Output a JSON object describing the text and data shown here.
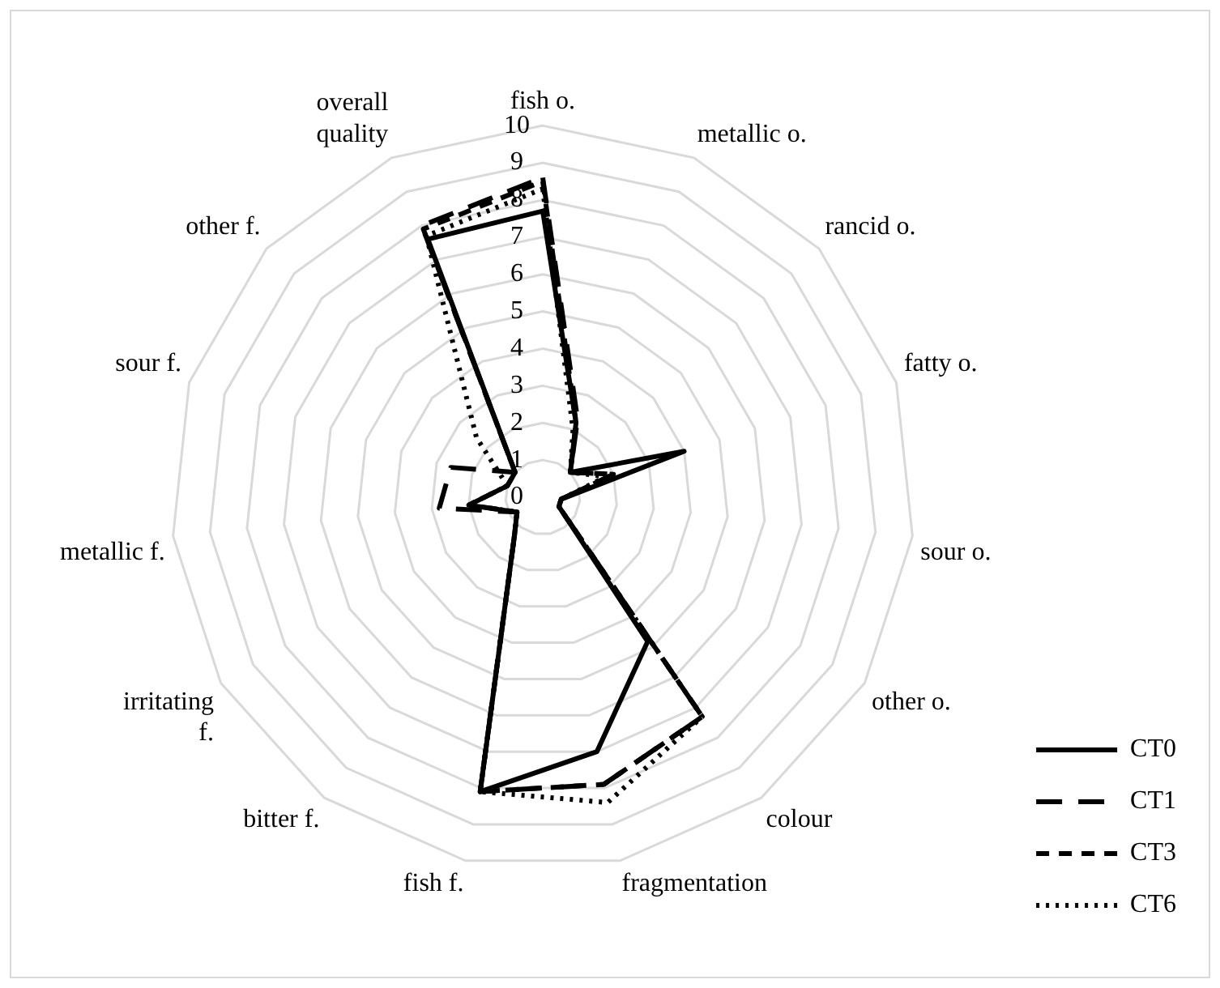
{
  "chart_data": {
    "type": "radar",
    "categories": [
      "fish o.",
      "metallic o.",
      "rancid o.",
      "fatty o.",
      "sour o.",
      "other o.",
      "colour",
      "fragmentation",
      "fish f.",
      "bitter f.",
      "irritating f.",
      "metallic f.",
      "sour f.",
      "other f.",
      "overall quality"
    ],
    "series": [
      {
        "name": "CT0",
        "color": "#000000",
        "line_style": "solid",
        "values": [
          7.7,
          2.2,
          1.0,
          4.0,
          0.5,
          0.5,
          4.8,
          7.0,
          8.1,
          1.3,
          0.8,
          2.0,
          1.0,
          1.0,
          7.6
        ]
      },
      {
        "name": "CT1",
        "color": "#000000",
        "line_style": "longdash",
        "values": [
          8.6,
          2.3,
          1.0,
          2.0,
          0.5,
          0.5,
          7.3,
          7.9,
          8.1,
          1.3,
          0.8,
          2.8,
          2.6,
          1.0,
          8.0
        ]
      },
      {
        "name": "CT3",
        "color": "#000000",
        "line_style": "dashed",
        "values": [
          8.5,
          2.2,
          1.0,
          2.0,
          0.5,
          0.5,
          7.3,
          7.9,
          8.1,
          1.3,
          0.8,
          2.0,
          1.0,
          1.0,
          7.9
        ]
      },
      {
        "name": "CT6",
        "color": "#000000",
        "line_style": "dotted",
        "values": [
          8.3,
          2.0,
          1.0,
          1.8,
          0.5,
          0.5,
          7.3,
          8.4,
          8.1,
          1.3,
          0.8,
          2.0,
          1.0,
          2.4,
          7.7
        ]
      }
    ],
    "ylim": [
      0,
      10
    ],
    "yticks": [
      0,
      1,
      2,
      3,
      4,
      5,
      6,
      7,
      8,
      9,
      10
    ],
    "grid": true,
    "legend": "bottom right",
    "marker": "none"
  }
}
